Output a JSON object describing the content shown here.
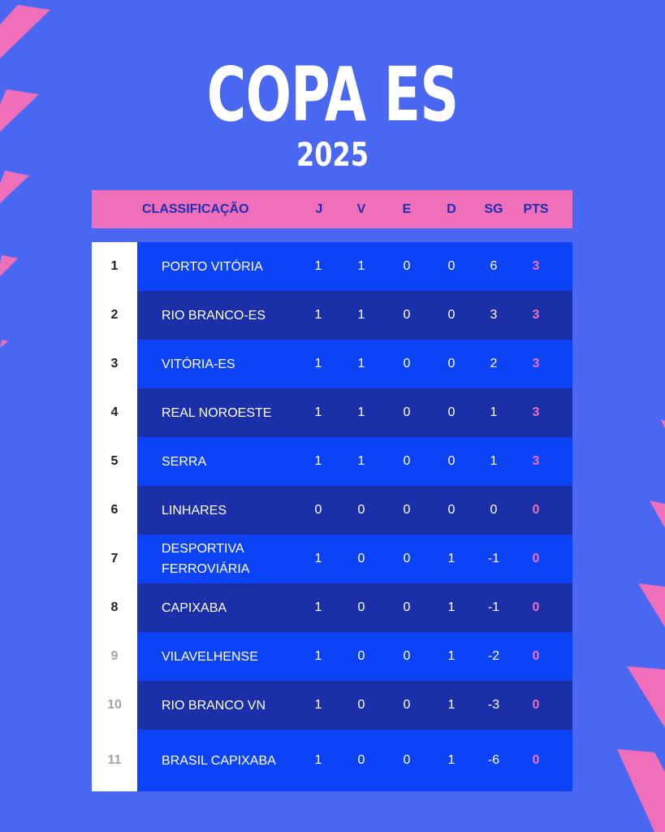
{
  "title": "COPA ES",
  "year": "2025",
  "colors": {
    "background": "#4a67f2",
    "accent_pink": "#f06fbb",
    "row_light": "#0d43f7",
    "row_dark": "#1a2fa8"
  },
  "header": {
    "classification": "CLASSIFICAÇÃO",
    "j": "J",
    "v": "V",
    "e": "E",
    "d": "D",
    "sg": "SG",
    "pts": "PTS"
  },
  "rows": [
    {
      "pos": "1",
      "team": "PORTO VITÓRIA",
      "j": "1",
      "v": "1",
      "e": "0",
      "d": "0",
      "sg": "6",
      "pts": "3"
    },
    {
      "pos": "2",
      "team": "RIO BRANCO-ES",
      "j": "1",
      "v": "1",
      "e": "0",
      "d": "0",
      "sg": "3",
      "pts": "3"
    },
    {
      "pos": "3",
      "team": "VITÓRIA-ES",
      "j": "1",
      "v": "1",
      "e": "0",
      "d": "0",
      "sg": "2",
      "pts": "3"
    },
    {
      "pos": "4",
      "team": "REAL NOROESTE",
      "j": "1",
      "v": "1",
      "e": "0",
      "d": "0",
      "sg": "1",
      "pts": "3"
    },
    {
      "pos": "5",
      "team": "SERRA",
      "j": "1",
      "v": "1",
      "e": "0",
      "d": "0",
      "sg": "1",
      "pts": "3"
    },
    {
      "pos": "6",
      "team": "LINHARES",
      "j": "0",
      "v": "0",
      "e": "0",
      "d": "0",
      "sg": "0",
      "pts": "0"
    },
    {
      "pos": "7",
      "team": "DESPORTIVA FERROVIÁRIA",
      "j": "1",
      "v": "0",
      "e": "0",
      "d": "1",
      "sg": "-1",
      "pts": "0"
    },
    {
      "pos": "8",
      "team": "CAPIXABA",
      "j": "1",
      "v": "0",
      "e": "0",
      "d": "1",
      "sg": "-1",
      "pts": "0"
    },
    {
      "pos": "9",
      "team": "VILAVELHENSE",
      "j": "1",
      "v": "0",
      "e": "0",
      "d": "1",
      "sg": "-2",
      "pts": "0"
    },
    {
      "pos": "10",
      "team": "RIO BRANCO VN",
      "j": "1",
      "v": "0",
      "e": "0",
      "d": "1",
      "sg": "-3",
      "pts": "0"
    },
    {
      "pos": "11",
      "team": "BRASIL CAPIXABA",
      "j": "1",
      "v": "0",
      "e": "0",
      "d": "1",
      "sg": "-6",
      "pts": "0"
    }
  ]
}
